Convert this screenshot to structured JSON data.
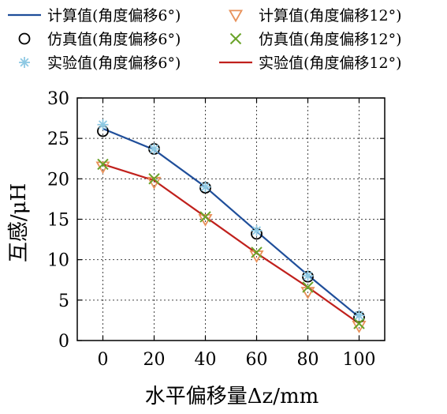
{
  "chart_data": {
    "type": "line",
    "x": [
      0,
      20,
      40,
      60,
      80,
      100
    ],
    "xlabel": "水平偏移量Δz/mm",
    "ylabel": "互感/μH",
    "xlim": [
      -10,
      110
    ],
    "ylim": [
      0,
      30
    ],
    "xticks": [
      "0",
      "20",
      "40",
      "60",
      "80",
      "100"
    ],
    "yticks": [
      "0",
      "5",
      "10",
      "15",
      "20",
      "25",
      "30"
    ],
    "grid": true,
    "legend_position": "top",
    "series": [
      {
        "name": "计算值(角度偏移6°)",
        "style": "line",
        "color": "#1f4e9a",
        "values": [
          26.2,
          23.6,
          19.0,
          13.5,
          8.1,
          2.9
        ]
      },
      {
        "name": "计算值(角度偏移12°)",
        "style": "marker-triangle-down",
        "color": "#e8915a",
        "values": [
          21.5,
          19.6,
          15.0,
          10.5,
          6.0,
          1.8
        ]
      },
      {
        "name": "仿真值(角度偏移6°)",
        "style": "marker-circle",
        "color": "#000000",
        "values": [
          25.9,
          23.7,
          18.9,
          13.2,
          7.9,
          2.9
        ]
      },
      {
        "name": "仿真值(角度偏移12°)",
        "style": "marker-x",
        "color": "#6aa329",
        "values": [
          21.8,
          20.0,
          15.3,
          10.9,
          6.6,
          2.1
        ]
      },
      {
        "name": "实验值(角度偏移6°)",
        "style": "marker-asterisk",
        "color": "#8ec9e3",
        "values": [
          26.7,
          23.7,
          19.0,
          13.6,
          8.0,
          3.1
        ]
      },
      {
        "name": "实验值(角度偏移12°)",
        "style": "line",
        "color": "#c0201c",
        "values": [
          21.8,
          19.8,
          15.3,
          10.8,
          6.6,
          2.1
        ]
      }
    ]
  }
}
